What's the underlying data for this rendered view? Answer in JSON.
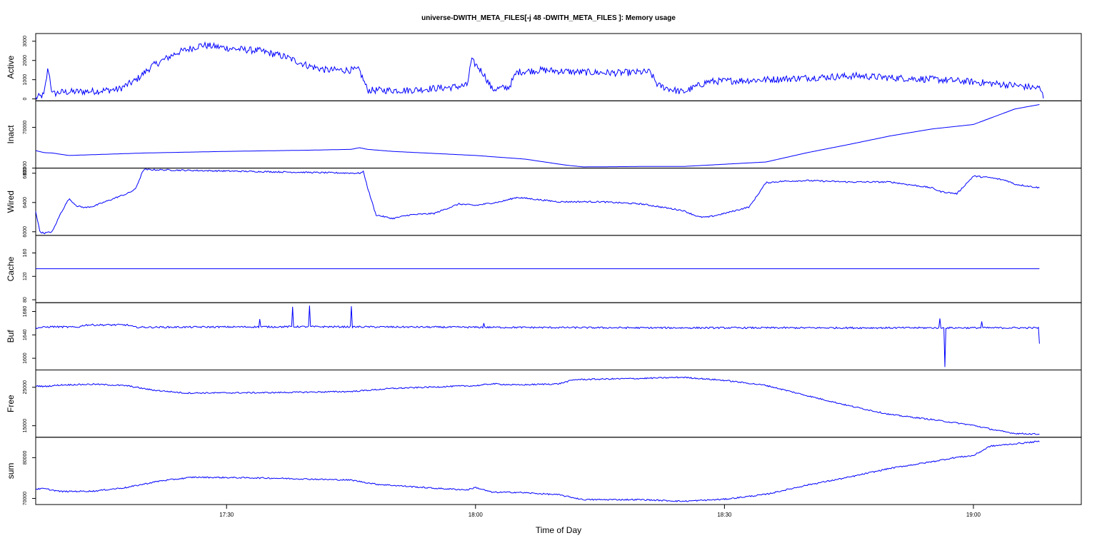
{
  "title": "universe-DWITH_META_FILES[-j 48 -DWITH_META_FILES ]: Memory usage",
  "xlabel": "Time of Day",
  "colors": {
    "line": "#0000ff",
    "axis": "#000000",
    "background": "#ffffff"
  },
  "chart_data": {
    "type": "line",
    "title": "universe-DWITH_META_FILES[-j 48 -DWITH_META_FILES ]: Memory usage",
    "xlabel": "Time of Day",
    "x_ticks": [
      "17:30",
      "18:00",
      "18:30",
      "19:00"
    ],
    "xlim": [
      "17:07",
      "19:13"
    ],
    "grid": false,
    "legend": "none",
    "panels": [
      {
        "name": "Active",
        "ylim": [
          -100,
          3400
        ],
        "yticks": [
          0,
          1000,
          2000,
          3000
        ],
        "noise": 180,
        "x": [
          "17:07",
          "17:08",
          "17:08:30",
          "17:09",
          "17:10",
          "17:14",
          "17:17",
          "17:19",
          "17:21",
          "17:24",
          "17:27",
          "17:31",
          "17:34",
          "17:37",
          "17:40",
          "17:42",
          "17:44",
          "17:46",
          "17:47",
          "17:49",
          "17:52",
          "17:55",
          "17:57",
          "17:59",
          "17:59:30",
          "18:00",
          "18:01",
          "18:02",
          "18:04",
          "18:05",
          "18:08",
          "18:12",
          "18:17",
          "18:21",
          "18:22",
          "18:24",
          "18:25",
          "18:28",
          "18:35",
          "18:40",
          "18:46",
          "18:50",
          "18:56",
          "19:01",
          "19:05",
          "19:08",
          "19:08:30"
        ],
        "y": [
          50,
          200,
          1650,
          250,
          350,
          400,
          500,
          950,
          1700,
          2400,
          2800,
          2600,
          2500,
          2200,
          1700,
          1500,
          1500,
          1500,
          450,
          450,
          450,
          550,
          600,
          700,
          2000,
          1800,
          1300,
          500,
          600,
          1400,
          1500,
          1400,
          1350,
          1400,
          700,
          450,
          350,
          900,
          1000,
          1100,
          1200,
          1100,
          1000,
          850,
          700,
          550,
          50
        ]
      },
      {
        "name": "Inact",
        "ylim": [
          60000,
          76500
        ],
        "yticks": [
          60000,
          70000
        ],
        "noise": 0,
        "x": [
          "17:07",
          "17:08",
          "17:09",
          "17:11",
          "17:20",
          "17:30",
          "17:40",
          "17:45",
          "17:46",
          "17:47",
          "17:50",
          "18:00",
          "18:06",
          "18:11",
          "18:13",
          "18:20",
          "18:25",
          "18:35",
          "18:40",
          "18:45",
          "18:50",
          "18:55",
          "19:00",
          "19:05",
          "19:08"
        ],
        "y": [
          64300,
          63800,
          63700,
          63100,
          63700,
          64100,
          64400,
          64600,
          65000,
          64600,
          64100,
          63100,
          62200,
          60700,
          60300,
          60400,
          60400,
          61500,
          63800,
          65800,
          67900,
          69600,
          70700,
          74500,
          75600
        ]
      },
      {
        "name": "Wired",
        "ylim": [
          5950,
          6870
        ],
        "yticks": [
          6000,
          6400,
          6800
        ],
        "noise": 10,
        "x": [
          "17:07",
          "17:07:30",
          "17:08",
          "17:09",
          "17:10",
          "17:11",
          "17:12",
          "17:13",
          "17:14",
          "17:17",
          "17:18",
          "17:19",
          "17:20",
          "17:30",
          "17:46",
          "17:46:30",
          "17:47",
          "17:48",
          "17:50",
          "17:52",
          "17:55",
          "17:58",
          "18:00",
          "18:03",
          "18:05",
          "18:10",
          "18:15",
          "18:20",
          "18:25",
          "18:27",
          "18:28",
          "18:30",
          "18:33",
          "18:35",
          "18:37",
          "18:40",
          "18:45",
          "18:50",
          "18:55",
          "18:56",
          "18:58",
          "19:00",
          "19:02",
          "19:04",
          "19:05",
          "19:08"
        ],
        "y": [
          6280,
          6000,
          5980,
          6000,
          6250,
          6450,
          6350,
          6330,
          6350,
          6480,
          6520,
          6580,
          6850,
          6830,
          6800,
          6820,
          6600,
          6230,
          6180,
          6230,
          6250,
          6380,
          6360,
          6410,
          6470,
          6410,
          6410,
          6380,
          6290,
          6200,
          6200,
          6250,
          6340,
          6670,
          6690,
          6700,
          6680,
          6680,
          6600,
          6550,
          6520,
          6760,
          6740,
          6700,
          6650,
          6600
        ]
      },
      {
        "name": "Cache",
        "ylim": [
          75,
          190
        ],
        "yticks": [
          80,
          120,
          160
        ],
        "noise": 0,
        "x": [
          "17:07",
          "19:08"
        ],
        "y": [
          133,
          133
        ]
      },
      {
        "name": "Buf",
        "ylim": [
          1580,
          1695
        ],
        "yticks": [
          1600,
          1640,
          1680
        ],
        "noise": 1.5,
        "x": [
          "17:07",
          "17:09",
          "17:12",
          "17:13",
          "17:18",
          "17:19",
          "17:40",
          "18:00",
          "18:20",
          "18:40",
          "19:00",
          "19:08"
        ],
        "y": [
          1652,
          1654,
          1653,
          1657,
          1657,
          1653,
          1654,
          1653,
          1652,
          1652,
          1652,
          1652
        ],
        "spikes": [
          [
            "17:34",
            1667
          ],
          [
            "17:38",
            1688
          ],
          [
            "17:40",
            1690
          ],
          [
            "17:45",
            1689
          ],
          [
            "18:01",
            1660
          ],
          [
            "18:56",
            1668
          ],
          [
            "18:56:30",
            1585
          ],
          [
            "19:01",
            1663
          ],
          [
            "19:08",
            1625
          ]
        ]
      },
      {
        "name": "Free",
        "ylim": [
          12000,
          29500
        ],
        "yticks": [
          15000,
          25000
        ],
        "noise": 180,
        "x": [
          "17:07",
          "17:08",
          "17:10",
          "17:14",
          "17:18",
          "17:21",
          "17:25",
          "17:35",
          "17:45",
          "17:50",
          "17:58",
          "18:00",
          "18:02",
          "18:05",
          "18:10",
          "18:12",
          "18:20",
          "18:25",
          "18:30",
          "18:35",
          "18:40",
          "18:45",
          "18:50",
          "18:55",
          "19:00",
          "19:03",
          "19:05",
          "19:08"
        ],
        "y": [
          25400,
          25200,
          25600,
          25800,
          25400,
          24300,
          23500,
          23600,
          23900,
          24700,
          25300,
          25400,
          25900,
          25600,
          25900,
          27000,
          27300,
          27600,
          26800,
          25500,
          22800,
          20200,
          17900,
          16600,
          15100,
          13700,
          13000,
          12800
        ]
      },
      {
        "name": "sum",
        "ylim": [
          68500,
          85000
        ],
        "yticks": [
          70000,
          80000
        ],
        "noise": 170,
        "x": [
          "17:07",
          "17:08",
          "17:10",
          "17:14",
          "17:18",
          "17:22",
          "17:26",
          "17:35",
          "17:45",
          "17:48",
          "17:55",
          "17:59",
          "18:00",
          "18:02",
          "18:05",
          "18:10",
          "18:13",
          "18:20",
          "18:25",
          "18:30",
          "18:35",
          "18:40",
          "18:45",
          "18:50",
          "18:55",
          "18:58",
          "19:00",
          "19:02",
          "19:08"
        ],
        "y": [
          72300,
          72400,
          71700,
          71800,
          72700,
          74300,
          75200,
          75000,
          74500,
          73500,
          72500,
          72100,
          72700,
          71500,
          71500,
          70900,
          69700,
          69700,
          69300,
          69800,
          71000,
          73300,
          75200,
          77400,
          79000,
          80100,
          80500,
          82800,
          84000
        ]
      }
    ]
  }
}
